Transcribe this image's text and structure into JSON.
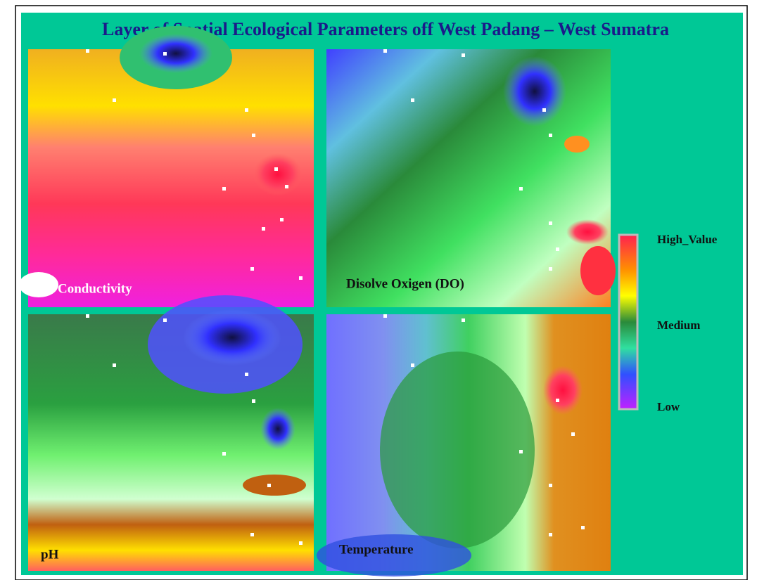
{
  "title": "Layer of  Spatial Ecological Parameters off West Padang – West Sumatra",
  "panels": [
    {
      "label": "Conductivity"
    },
    {
      "label": "Disolve Oxigen (DO)"
    },
    {
      "label": "pH"
    },
    {
      "label": "Temperature"
    }
  ],
  "legend": {
    "high": "High_Value",
    "medium": "Medium",
    "low": "Low"
  }
}
